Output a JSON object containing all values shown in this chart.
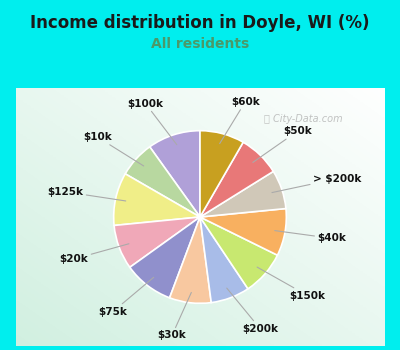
{
  "title": "Income distribution in Doyle, WI (%)",
  "subtitle": "All residents",
  "title_color": "#1a1a1a",
  "subtitle_color": "#4a9a6a",
  "watermark": "ⓘ City-Data.com",
  "bg_outer": "#00eeee",
  "bg_chart_tl": "#d8f0e8",
  "bg_chart_br": "#ffffff",
  "labels": [
    "$100k",
    "$10k",
    "$125k",
    "$20k",
    "$75k",
    "$30k",
    "$200k",
    "$150k",
    "$40k",
    "> $200k",
    "$50k",
    "$60k"
  ],
  "values": [
    9.5,
    6.5,
    9.5,
    8.0,
    9.0,
    7.5,
    7.0,
    8.0,
    8.5,
    7.0,
    7.5,
    8.0
  ],
  "colors": [
    "#b0a0d8",
    "#b8d8a0",
    "#f0ee88",
    "#f0a8b8",
    "#9090cc",
    "#f8c8a0",
    "#a8bce8",
    "#c8e870",
    "#f8b060",
    "#d0c8b8",
    "#e87878",
    "#c8a020"
  ],
  "startangle": 90,
  "label_fontsize": 7.5,
  "title_fontsize": 12,
  "subtitle_fontsize": 10
}
